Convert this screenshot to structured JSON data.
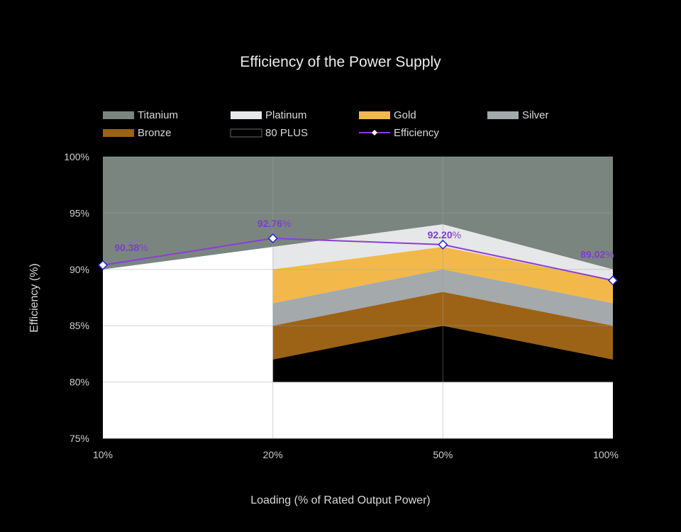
{
  "chart_data": {
    "type": "area",
    "title": "Efficiency of the Power Supply",
    "xlabel": "Loading (% of Rated Output Power)",
    "ylabel": "Efficiency (%)",
    "categories": [
      "10%",
      "20%",
      "50%",
      "100%"
    ],
    "ylim": [
      75,
      100
    ],
    "yticks": [
      "75%",
      "80%",
      "85%",
      "90%",
      "95%",
      "100%"
    ],
    "ytick_values": [
      75,
      80,
      85,
      90,
      95,
      100
    ],
    "grid": true,
    "legend_position": "top",
    "background_fill": "#ffffff",
    "series": [
      {
        "name": "Titanium",
        "kind": "band",
        "color": "#7a8580",
        "upper": [
          100,
          100,
          100,
          100
        ],
        "lower": [
          90,
          92,
          94,
          90
        ]
      },
      {
        "name": "Platinum",
        "kind": "band",
        "color": "#e6e7e8",
        "upper": [
          null,
          92,
          94,
          90
        ],
        "lower": [
          null,
          90,
          92,
          89
        ]
      },
      {
        "name": "Gold",
        "kind": "band",
        "color": "#f2b94a",
        "upper": [
          null,
          90,
          92,
          89
        ],
        "lower": [
          null,
          87,
          90,
          87
        ]
      },
      {
        "name": "Silver",
        "kind": "band",
        "color": "#a4a9ac",
        "upper": [
          null,
          87,
          90,
          87
        ],
        "lower": [
          null,
          85,
          88,
          85
        ]
      },
      {
        "name": "Bronze",
        "kind": "band",
        "color": "#9c6216",
        "upper": [
          null,
          85,
          88,
          85
        ],
        "lower": [
          null,
          82,
          85,
          82
        ]
      },
      {
        "name": "80 PLUS",
        "kind": "band",
        "color": "#000000",
        "upper": [
          null,
          82,
          85,
          82
        ],
        "lower": [
          null,
          80,
          80,
          80
        ]
      },
      {
        "name": "Efficiency",
        "kind": "line",
        "color": "#8a3fd1",
        "marker_color": "#2424c8",
        "values": [
          90.38,
          92.76,
          92.2,
          89.02
        ],
        "labels": [
          {
            "num": "90.38",
            "pct": "%"
          },
          {
            "num": "92.76",
            "pct": "%"
          },
          {
            "num": "92.20",
            "pct": "%"
          },
          {
            "num": "89.02",
            "pct": "%"
          }
        ]
      }
    ]
  }
}
